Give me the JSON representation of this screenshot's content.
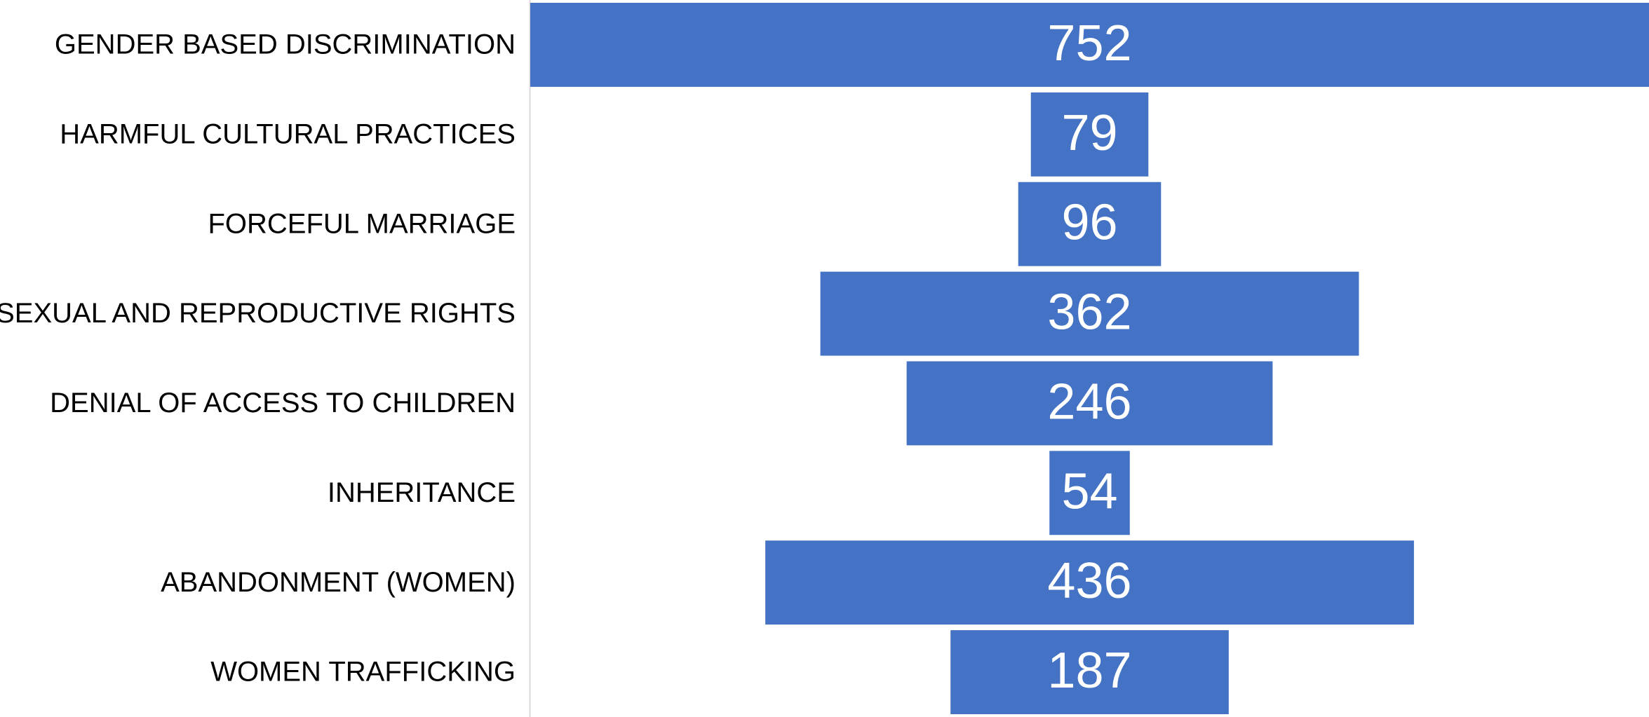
{
  "chart_data": {
    "type": "funnel",
    "categories": [
      "GENDER BASED DISCRIMINATION",
      "HARMFUL CULTURAL PRACTICES",
      "FORCEFUL MARRIAGE",
      "SEXUAL AND REPRODUCTIVE RIGHTS",
      "DENIAL OF ACCESS TO CHILDREN",
      "INHERITANCE",
      "ABANDONMENT (WOMEN)",
      "WOMEN TRAFFICKING"
    ],
    "values": [
      752,
      79,
      96,
      362,
      246,
      54,
      436,
      187
    ],
    "color": "#4472c4"
  }
}
